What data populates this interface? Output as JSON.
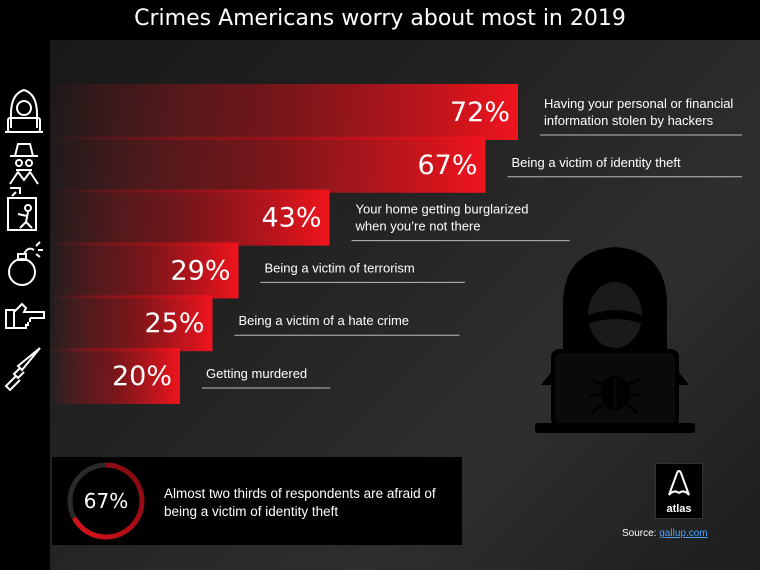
{
  "title": "Crimes Americans worry about most in 2019",
  "chart_data": {
    "type": "bar",
    "orientation": "horizontal",
    "title": "Crimes Americans worry about most in 2019",
    "categories": [
      "Having your personal or financial information stolen by hackers",
      "Being a victim of identity theft",
      "Your home getting burglarized when you're not there",
      "Being a victim of terrorism",
      "Being a victim of a hate crime",
      "Getting murdered"
    ],
    "values": [
      72,
      67,
      43,
      29,
      25,
      20
    ],
    "labels": [
      "72%",
      "67%",
      "43%",
      "29%",
      "25%",
      "20%"
    ],
    "unit": "%",
    "icons": [
      "hacker-icon",
      "spy-icon",
      "burglar-icon",
      "bomb-icon",
      "pointing-hand-icon",
      "knife-icon"
    ],
    "bar_color": "#e0121b"
  },
  "label_lines": [
    [
      "Having your personal or financial",
      "information stolen by hackers"
    ],
    [
      "Being a victim of identity theft"
    ],
    [
      "Your home getting burglarized",
      "when you’re not there"
    ],
    [
      "Being a victim of terrorism"
    ],
    [
      "Being a victim of a hate crime"
    ],
    [
      "Getting murdered"
    ]
  ],
  "callout": {
    "value": "67%",
    "text": "Almost two thirds of respondents are afraid of being a victim of identity theft"
  },
  "logo": {
    "text": "atlas"
  },
  "source": {
    "label": "Source:",
    "link": "gallup.com"
  },
  "illustration": "hacker-with-laptop-bug-icon"
}
